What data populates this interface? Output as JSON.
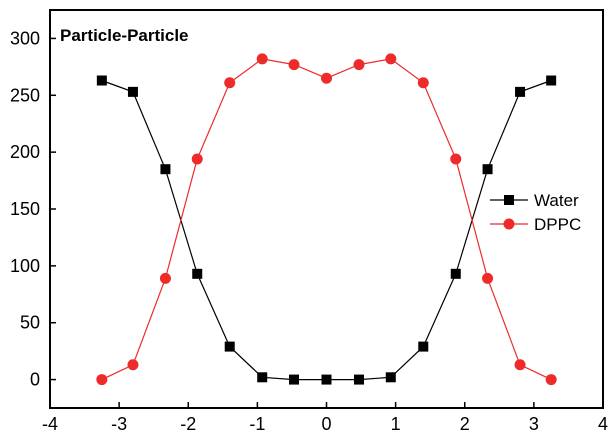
{
  "chart_data": {
    "type": "line",
    "title": "Particle-Particle",
    "xlabel": "",
    "ylabel": "",
    "xlim": [
      -4,
      4
    ],
    "ylim": [
      -25,
      325
    ],
    "x_ticks": [
      -4,
      -3,
      -2,
      -1,
      0,
      1,
      2,
      3,
      4
    ],
    "y_ticks": [
      0,
      50,
      100,
      150,
      200,
      250,
      300
    ],
    "grid": false,
    "legend": "right",
    "series": [
      {
        "name": "Water",
        "color": "#000000",
        "marker": "square",
        "x": [
          -3.25,
          -2.8,
          -2.33,
          -1.87,
          -1.4,
          -0.93,
          -0.47,
          0,
          0.47,
          0.93,
          1.4,
          1.87,
          2.33,
          2.8,
          3.25
        ],
        "y": [
          263,
          253,
          185,
          93,
          29,
          2,
          0,
          0,
          0,
          2,
          29,
          93,
          185,
          253,
          263
        ]
      },
      {
        "name": "DPPC",
        "color": "#ee2b2b",
        "marker": "circle",
        "x": [
          -3.25,
          -2.8,
          -2.33,
          -1.87,
          -1.4,
          -0.93,
          -0.47,
          0,
          0.47,
          0.93,
          1.4,
          1.87,
          2.33,
          2.8,
          3.25
        ],
        "y": [
          0,
          13,
          89,
          194,
          261,
          282,
          277,
          265,
          277,
          282,
          261,
          194,
          89,
          13,
          0
        ]
      }
    ]
  }
}
